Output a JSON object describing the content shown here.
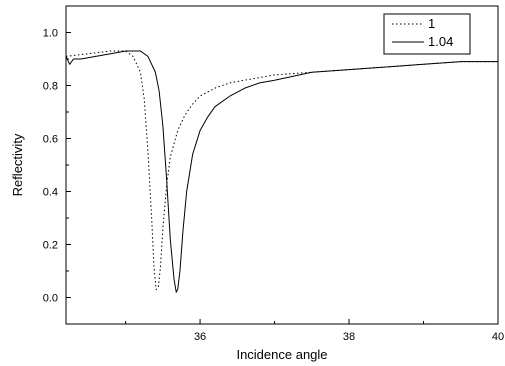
{
  "chart_data": {
    "type": "line",
    "xlabel": "Incidence angle",
    "ylabel": "Reflectivity",
    "xlim": [
      34.2,
      40
    ],
    "ylim": [
      -0.1,
      1.1
    ],
    "xticks": [
      36,
      38,
      40
    ],
    "xtick_labels": [
      "36",
      "38",
      "40"
    ],
    "yticks": [
      0.0,
      0.2,
      0.4,
      0.6,
      0.8,
      1.0
    ],
    "ytick_labels": [
      "0.0",
      "0.2",
      "0.4",
      "0.6",
      "0.8",
      "1.0"
    ],
    "grid": false,
    "legend_position": "top-right",
    "series": [
      {
        "name": "1",
        "style": "dotted",
        "color": "#000000",
        "x": [
          34.2,
          34.5,
          34.8,
          35.0,
          35.1,
          35.2,
          35.25,
          35.3,
          35.35,
          35.38,
          35.41,
          35.44,
          35.47,
          35.5,
          35.55,
          35.6,
          35.7,
          35.8,
          35.9,
          36.0,
          36.2,
          36.4,
          36.6,
          36.8,
          37.0,
          37.5,
          38.0,
          38.5,
          39.0,
          39.5,
          40.0
        ],
        "y": [
          0.91,
          0.92,
          0.93,
          0.93,
          0.91,
          0.85,
          0.75,
          0.55,
          0.3,
          0.12,
          0.03,
          0.04,
          0.12,
          0.26,
          0.42,
          0.53,
          0.63,
          0.69,
          0.73,
          0.76,
          0.79,
          0.81,
          0.82,
          0.83,
          0.84,
          0.85,
          0.86,
          0.87,
          0.88,
          0.89,
          0.89
        ]
      },
      {
        "name": "1.04",
        "style": "solid",
        "color": "#000000",
        "x": [
          34.2,
          34.25,
          34.3,
          34.4,
          34.6,
          34.8,
          35.0,
          35.2,
          35.3,
          35.4,
          35.45,
          35.5,
          35.55,
          35.6,
          35.65,
          35.68,
          35.7,
          35.73,
          35.77,
          35.82,
          35.9,
          36.0,
          36.1,
          36.2,
          36.4,
          36.6,
          36.8,
          37.0,
          37.5,
          38.0,
          38.5,
          39.0,
          39.5,
          40.0
        ],
        "y": [
          0.91,
          0.88,
          0.9,
          0.9,
          0.91,
          0.92,
          0.93,
          0.93,
          0.91,
          0.85,
          0.78,
          0.65,
          0.45,
          0.22,
          0.07,
          0.02,
          0.03,
          0.1,
          0.25,
          0.4,
          0.54,
          0.63,
          0.68,
          0.72,
          0.76,
          0.79,
          0.81,
          0.82,
          0.85,
          0.86,
          0.87,
          0.88,
          0.89,
          0.89
        ]
      }
    ]
  }
}
